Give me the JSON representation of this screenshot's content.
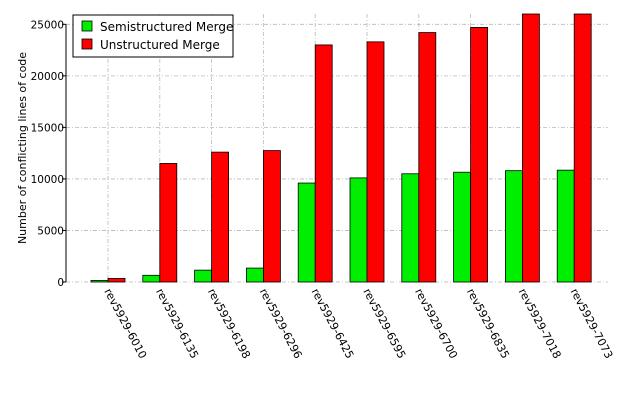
{
  "chart_data": {
    "type": "bar",
    "title": "",
    "xlabel": "",
    "ylabel": "Number of conflicting lines of code",
    "ylim": [
      0,
      26000
    ],
    "yticks": [
      0,
      5000,
      10000,
      15000,
      20000,
      25000
    ],
    "grid": true,
    "legend_position": "top-left",
    "categories": [
      "rev5929-6010",
      "rev5929-6135",
      "rev5929-6198",
      "rev5929-6296",
      "rev5929-6425",
      "rev5929-6595",
      "rev5929-6700",
      "rev5929-6835",
      "rev5929-7018",
      "rev5929-7073"
    ],
    "series": [
      {
        "name": "Semistructured Merge",
        "color": "#00ee00",
        "values": [
          150,
          650,
          1150,
          1350,
          9600,
          10100,
          10500,
          10650,
          10800,
          10850
        ]
      },
      {
        "name": "Unstructured Merge",
        "color": "#ff0000",
        "values": [
          350,
          11500,
          12600,
          12750,
          23000,
          23300,
          24200,
          24700,
          26000,
          26000
        ]
      }
    ]
  }
}
